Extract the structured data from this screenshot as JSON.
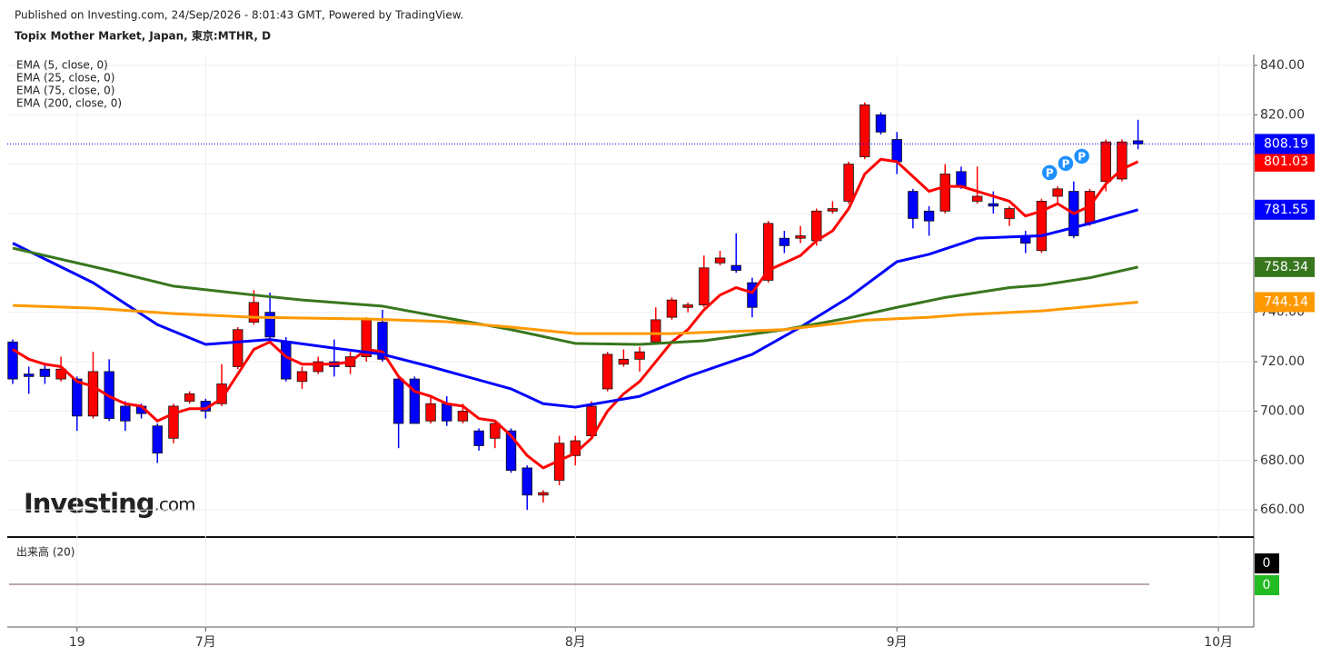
{
  "header": {
    "published": "Published on Investing.com, 24/Sep/2026 - 8:01:43 GMT, Powered by TradingView.",
    "title": "Topix Mother Market, Japan, 東京:MTHR, D"
  },
  "logo": {
    "main": "Investing",
    "suffix": ".com"
  },
  "chart_data": {
    "type": "candlestick",
    "up_color": "#ff0000",
    "down_color": "#0000ff",
    "xlim": [
      -0.34,
      77.2
    ],
    "xticks": [
      {
        "value": 4,
        "label": "19"
      },
      {
        "value": 12,
        "label": "7月"
      },
      {
        "value": 35,
        "label": "8月"
      },
      {
        "value": 55,
        "label": "9月"
      },
      {
        "value": 75,
        "label": "10月"
      }
    ],
    "ylim": [
      649,
      844.4
    ],
    "yticks": [
      {
        "value": 660,
        "label": "660.00"
      },
      {
        "value": 680,
        "label": "680.00"
      },
      {
        "value": 700,
        "label": "700.00"
      },
      {
        "value": 720,
        "label": "720.00"
      },
      {
        "value": 740,
        "label": "740.00"
      },
      {
        "value": 760,
        "label": "760.00"
      },
      {
        "value": 780,
        "label": "780.00"
      },
      {
        "value": 800,
        "label": "800.00"
      },
      {
        "value": 820,
        "label": "820.00"
      },
      {
        "value": 840,
        "label": "840.00"
      }
    ],
    "grid": true,
    "open": [
      728,
      715,
      717,
      713,
      713,
      698,
      716,
      702,
      702,
      694,
      689,
      704,
      704,
      703,
      718,
      736,
      740,
      728,
      712,
      716,
      720,
      718,
      722,
      736,
      713,
      713,
      696,
      703,
      696,
      692,
      689,
      692,
      677,
      666,
      672,
      682,
      690,
      709,
      719,
      721,
      728,
      738,
      742,
      743,
      760,
      759,
      752,
      753,
      770,
      770,
      769,
      781,
      785,
      803,
      820,
      810,
      789,
      781,
      781,
      797,
      785,
      784,
      778,
      771,
      765,
      787,
      789,
      776,
      793,
      794,
      809.5
    ],
    "high": [
      729,
      718,
      719,
      722,
      714,
      724,
      721,
      704,
      703,
      695,
      703,
      708,
      705,
      719,
      734,
      749,
      748,
      730,
      718,
      722,
      729,
      724,
      738,
      741,
      714,
      714,
      706,
      706,
      703,
      693,
      696,
      693,
      678,
      668,
      690,
      690,
      704,
      724,
      725,
      726,
      742,
      746,
      744,
      763,
      765,
      772,
      754,
      777,
      773,
      775,
      782,
      785,
      801,
      825,
      821,
      813,
      790,
      783,
      800,
      799,
      799,
      789,
      783,
      773,
      786,
      791,
      793,
      790,
      810,
      810,
      818
    ],
    "low": [
      711,
      707,
      711,
      712,
      692,
      697,
      696,
      692,
      697,
      679,
      687,
      703,
      697,
      702,
      717,
      735,
      728,
      712,
      709,
      715,
      714,
      715,
      720,
      720,
      685,
      695,
      695,
      694,
      695,
      684,
      685,
      675,
      660,
      663,
      670,
      678,
      689,
      708,
      718,
      716,
      727,
      737,
      740,
      742,
      759,
      756,
      738,
      752,
      764,
      768,
      767,
      780,
      784,
      802,
      812,
      796,
      774,
      771,
      780,
      790,
      784,
      780,
      775,
      764,
      764,
      784,
      770,
      775,
      789,
      793,
      806
    ],
    "close": [
      713,
      714,
      714,
      717,
      698,
      716,
      697,
      696,
      699,
      683,
      702,
      707,
      700,
      711,
      733,
      744,
      730,
      713,
      716,
      720,
      718,
      722,
      737,
      721,
      695,
      695,
      703,
      696,
      700,
      686,
      695,
      676,
      666,
      667,
      687,
      688,
      702,
      723,
      721,
      724,
      737,
      745,
      743,
      758,
      762,
      757,
      742,
      776,
      767,
      771,
      781,
      782,
      800,
      824,
      813,
      801,
      778,
      777,
      796,
      791,
      787,
      783,
      782,
      768,
      785,
      790,
      771,
      789,
      809,
      809,
      808.19
    ],
    "lines": [
      {
        "name": "EMA (5, close, 0)",
        "color": "#ff0000",
        "values": [
          725,
          721,
          719,
          718,
          712,
          710,
          706,
          703,
          702,
          696,
          699,
          701,
          701,
          705,
          715,
          725,
          728,
          722,
          719,
          719,
          719,
          720,
          725,
          724,
          714,
          708,
          706,
          703,
          702,
          697,
          696,
          690,
          682,
          677,
          680,
          683,
          689,
          700,
          707,
          712,
          720,
          728,
          733,
          741,
          747,
          750,
          748,
          757,
          760,
          763,
          769,
          773,
          782,
          796,
          802,
          801,
          795,
          789,
          791,
          791,
          789,
          787,
          785,
          779,
          781,
          784,
          780,
          783,
          792,
          798,
          801.03
        ]
      },
      {
        "name": "EMA (25, close, 0)",
        "color": "#0000ff",
        "x": [
          0,
          5,
          9,
          12,
          16,
          20,
          23,
          26,
          31,
          33,
          35,
          39,
          42,
          46,
          49,
          52,
          55,
          57,
          60,
          64,
          67,
          70
        ],
        "values": [
          768,
          752,
          735,
          727,
          729,
          725.5,
          723,
          718,
          709,
          703,
          701.6,
          706,
          714,
          723,
          734,
          746,
          760.5,
          763.5,
          770,
          771,
          776,
          781.55
        ]
      },
      {
        "name": "EMA (75, close, 0)",
        "color": "#38761d",
        "x": [
          0,
          6,
          10,
          15,
          18,
          23,
          27,
          31,
          35,
          39,
          43,
          48,
          52,
          55,
          58,
          62,
          64,
          67,
          70
        ],
        "values": [
          766,
          757,
          750.6,
          747,
          745,
          742.5,
          737.7,
          733,
          727.4,
          727,
          728.5,
          733,
          737.7,
          742,
          746,
          750,
          751,
          754,
          758.34
        ]
      },
      {
        "name": "EMA (200, close, 0)",
        "color": "#ff9900",
        "x": [
          0,
          5,
          10,
          15,
          22,
          27,
          31,
          35,
          41,
          48,
          53,
          57,
          59,
          64,
          70
        ],
        "values": [
          742.8,
          741.7,
          739.5,
          738,
          737.3,
          736.2,
          734,
          731.4,
          731.4,
          733,
          736.8,
          738,
          739,
          740.6,
          744.14
        ]
      }
    ],
    "markers": [
      {
        "x": 64.5,
        "y": 796.6,
        "label": "P"
      },
      {
        "x": 65.5,
        "y": 800.3,
        "label": "P"
      },
      {
        "x": 66.5,
        "y": 803.2,
        "label": "P"
      }
    ],
    "volume": {
      "title": "出来高 (20)",
      "last_volume": 0,
      "volume_ma": 0,
      "ylim": [
        -1,
        1
      ]
    }
  }
}
